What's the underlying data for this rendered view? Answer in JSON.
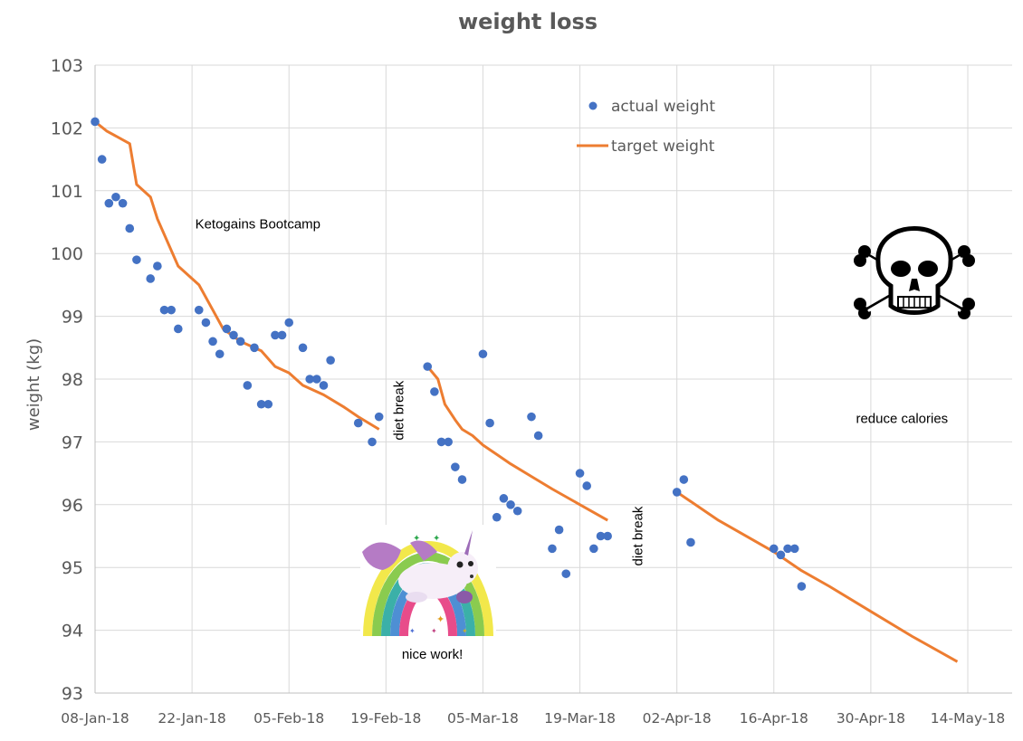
{
  "chart_data": {
    "type": "scatter",
    "title": "weight loss",
    "xlabel": "",
    "ylabel": "weight (kg)",
    "ylim": [
      93,
      103
    ],
    "yticks": [
      93,
      94,
      95,
      96,
      97,
      98,
      99,
      100,
      101,
      102,
      103
    ],
    "x_start_date": "08-Jan-18",
    "xlim_days": [
      0,
      126
    ],
    "xticks": [
      {
        "day": 0,
        "label": "08-Jan-18"
      },
      {
        "day": 14,
        "label": "22-Jan-18"
      },
      {
        "day": 28,
        "label": "05-Feb-18"
      },
      {
        "day": 42,
        "label": "19-Feb-18"
      },
      {
        "day": 56,
        "label": "05-Mar-18"
      },
      {
        "day": 70,
        "label": "19-Mar-18"
      },
      {
        "day": 84,
        "label": "02-Apr-18"
      },
      {
        "day": 98,
        "label": "16-Apr-18"
      },
      {
        "day": 112,
        "label": "30-Apr-18"
      },
      {
        "day": 126,
        "label": "14-May-18"
      }
    ],
    "grid": true,
    "legend_position": "top-center",
    "series": [
      {
        "name": "actual weight",
        "type": "scatter",
        "color": "#4472C4",
        "points": [
          {
            "day": 0,
            "date": "08-Jan-18",
            "value": 102.1
          },
          {
            "day": 1,
            "date": "09-Jan-18",
            "value": 101.5
          },
          {
            "day": 2,
            "date": "10-Jan-18",
            "value": 100.8
          },
          {
            "day": 3,
            "date": "11-Jan-18",
            "value": 100.9
          },
          {
            "day": 4,
            "date": "12-Jan-18",
            "value": 100.8
          },
          {
            "day": 5,
            "date": "13-Jan-18",
            "value": 100.4
          },
          {
            "day": 6,
            "date": "14-Jan-18",
            "value": 99.9
          },
          {
            "day": 8,
            "date": "16-Jan-18",
            "value": 99.6
          },
          {
            "day": 9,
            "date": "17-Jan-18",
            "value": 99.8
          },
          {
            "day": 10,
            "date": "18-Jan-18",
            "value": 99.1
          },
          {
            "day": 11,
            "date": "19-Jan-18",
            "value": 99.1
          },
          {
            "day": 12,
            "date": "20-Jan-18",
            "value": 98.8
          },
          {
            "day": 15,
            "date": "23-Jan-18",
            "value": 99.1
          },
          {
            "day": 16,
            "date": "24-Jan-18",
            "value": 98.9
          },
          {
            "day": 17,
            "date": "25-Jan-18",
            "value": 98.6
          },
          {
            "day": 18,
            "date": "26-Jan-18",
            "value": 98.4
          },
          {
            "day": 19,
            "date": "27-Jan-18",
            "value": 98.8
          },
          {
            "day": 20,
            "date": "28-Jan-18",
            "value": 98.7
          },
          {
            "day": 21,
            "date": "29-Jan-18",
            "value": 98.6
          },
          {
            "day": 22,
            "date": "30-Jan-18",
            "value": 97.9
          },
          {
            "day": 23,
            "date": "31-Jan-18",
            "value": 98.5
          },
          {
            "day": 24,
            "date": "01-Feb-18",
            "value": 97.6
          },
          {
            "day": 25,
            "date": "02-Feb-18",
            "value": 97.6
          },
          {
            "day": 26,
            "date": "03-Feb-18",
            "value": 98.7
          },
          {
            "day": 27,
            "date": "04-Feb-18",
            "value": 98.7
          },
          {
            "day": 28,
            "date": "05-Feb-18",
            "value": 98.9
          },
          {
            "day": 30,
            "date": "07-Feb-18",
            "value": 98.5
          },
          {
            "day": 31,
            "date": "08-Feb-18",
            "value": 98.0
          },
          {
            "day": 32,
            "date": "09-Feb-18",
            "value": 98.0
          },
          {
            "day": 33,
            "date": "10-Feb-18",
            "value": 97.9
          },
          {
            "day": 34,
            "date": "11-Feb-18",
            "value": 98.3
          },
          {
            "day": 38,
            "date": "15-Feb-18",
            "value": 97.3
          },
          {
            "day": 40,
            "date": "17-Feb-18",
            "value": 97.0
          },
          {
            "day": 41,
            "date": "18-Feb-18",
            "value": 97.4
          },
          {
            "day": 48,
            "date": "25-Feb-18",
            "value": 98.2
          },
          {
            "day": 49,
            "date": "26-Feb-18",
            "value": 97.8
          },
          {
            "day": 50,
            "date": "27-Feb-18",
            "value": 97.0
          },
          {
            "day": 51,
            "date": "28-Feb-18",
            "value": 97.0
          },
          {
            "day": 52,
            "date": "01-Mar-18",
            "value": 96.6
          },
          {
            "day": 53,
            "date": "02-Mar-18",
            "value": 96.4
          },
          {
            "day": 56,
            "date": "05-Mar-18",
            "value": 98.4
          },
          {
            "day": 57,
            "date": "06-Mar-18",
            "value": 97.3
          },
          {
            "day": 58,
            "date": "07-Mar-18",
            "value": 95.8
          },
          {
            "day": 59,
            "date": "08-Mar-18",
            "value": 96.1
          },
          {
            "day": 60,
            "date": "09-Mar-18",
            "value": 96.0
          },
          {
            "day": 61,
            "date": "10-Mar-18",
            "value": 95.9
          },
          {
            "day": 63,
            "date": "12-Mar-18",
            "value": 97.4
          },
          {
            "day": 64,
            "date": "13-Mar-18",
            "value": 97.1
          },
          {
            "day": 66,
            "date": "15-Mar-18",
            "value": 95.3
          },
          {
            "day": 67,
            "date": "16-Mar-18",
            "value": 95.6
          },
          {
            "day": 68,
            "date": "17-Mar-18",
            "value": 94.9
          },
          {
            "day": 70,
            "date": "19-Mar-18",
            "value": 96.5
          },
          {
            "day": 71,
            "date": "20-Mar-18",
            "value": 96.3
          },
          {
            "day": 72,
            "date": "21-Mar-18",
            "value": 95.3
          },
          {
            "day": 73,
            "date": "22-Mar-18",
            "value": 95.5
          },
          {
            "day": 74,
            "date": "23-Mar-18",
            "value": 95.5
          },
          {
            "day": 84,
            "date": "02-Apr-18",
            "value": 96.2
          },
          {
            "day": 85,
            "date": "03-Apr-18",
            "value": 96.4
          },
          {
            "day": 86,
            "date": "04-Apr-18",
            "value": 95.4
          },
          {
            "day": 98,
            "date": "16-Apr-18",
            "value": 95.3
          },
          {
            "day": 99,
            "date": "17-Apr-18",
            "value": 95.2
          },
          {
            "day": 100,
            "date": "18-Apr-18",
            "value": 95.3
          },
          {
            "day": 101,
            "date": "19-Apr-18",
            "value": 95.3
          },
          {
            "day": 102,
            "date": "20-Apr-18",
            "value": 94.7
          }
        ]
      },
      {
        "name": "target weight",
        "type": "line",
        "color": "#ED7D31",
        "segments": [
          [
            {
              "day": 0,
              "value": 102.1
            },
            {
              "day": 1.7,
              "value": 101.95
            },
            {
              "day": 5,
              "value": 101.75
            },
            {
              "day": 6,
              "value": 101.1
            },
            {
              "day": 8,
              "value": 100.9
            },
            {
              "day": 9,
              "value": 100.55
            },
            {
              "day": 12,
              "value": 99.8
            },
            {
              "day": 15,
              "value": 99.5
            },
            {
              "day": 17,
              "value": 99.1
            },
            {
              "day": 18.5,
              "value": 98.8
            },
            {
              "day": 21,
              "value": 98.6
            },
            {
              "day": 24,
              "value": 98.45
            },
            {
              "day": 26,
              "value": 98.2
            },
            {
              "day": 28,
              "value": 98.1
            },
            {
              "day": 30,
              "value": 97.9
            },
            {
              "day": 33,
              "value": 97.75
            },
            {
              "day": 36,
              "value": 97.55
            },
            {
              "day": 38,
              "value": 97.4
            },
            {
              "day": 41,
              "value": 97.2
            }
          ],
          [
            {
              "day": 48,
              "value": 98.2
            },
            {
              "day": 49.5,
              "value": 98.0
            },
            {
              "day": 50.5,
              "value": 97.6
            },
            {
              "day": 52,
              "value": 97.35
            },
            {
              "day": 53,
              "value": 97.2
            },
            {
              "day": 54.5,
              "value": 97.1
            },
            {
              "day": 56,
              "value": 96.95
            },
            {
              "day": 58,
              "value": 96.8
            },
            {
              "day": 60,
              "value": 96.65
            },
            {
              "day": 63,
              "value": 96.45
            },
            {
              "day": 66,
              "value": 96.25
            },
            {
              "day": 70,
              "value": 96.0
            },
            {
              "day": 74,
              "value": 95.75
            }
          ],
          [
            {
              "day": 84,
              "value": 96.2
            },
            {
              "day": 90,
              "value": 95.75
            },
            {
              "day": 98,
              "value": 95.25
            },
            {
              "day": 102,
              "value": 94.95
            },
            {
              "day": 106,
              "value": 94.7
            },
            {
              "day": 112,
              "value": 94.3
            },
            {
              "day": 118,
              "value": 93.9
            },
            {
              "day": 124.5,
              "value": 93.5
            }
          ]
        ]
      }
    ],
    "annotations": [
      {
        "id": "bootcamp",
        "text": "Ketogains Bootcamp",
        "day": 23.5,
        "value": 100.4,
        "rotate": false
      },
      {
        "id": "diet-break-1",
        "text": "diet break",
        "day": 44.5,
        "value": 97.5,
        "rotate": true
      },
      {
        "id": "diet-break-2",
        "text": "diet break",
        "day": 79,
        "value": 95.5,
        "rotate": true
      },
      {
        "id": "nice-work",
        "text": "nice work!",
        "day": 48.7,
        "value": 93.55,
        "rotate": false
      },
      {
        "id": "reduce-calories",
        "text": "reduce calories",
        "day": 116.5,
        "value": 97.3,
        "rotate": false
      }
    ],
    "images": [
      {
        "id": "unicorn",
        "description": "unicorn-rainbow-image"
      },
      {
        "id": "skull",
        "description": "skull-and-crossbones-icon"
      }
    ]
  }
}
